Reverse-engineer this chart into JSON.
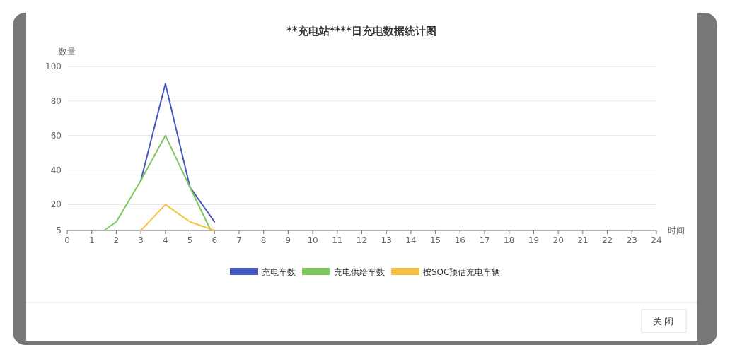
{
  "chart_data": {
    "type": "line",
    "title": "**充电站****日充电数据统计图",
    "ylabel": "数量",
    "xlabel": "时间",
    "xlim": [
      0,
      24
    ],
    "xticks": [
      0,
      1,
      2,
      3,
      4,
      5,
      6,
      7,
      8,
      9,
      10,
      11,
      12,
      13,
      14,
      15,
      16,
      17,
      18,
      19,
      20,
      21,
      22,
      23,
      24
    ],
    "ylim": [
      5,
      100
    ],
    "yticks": [
      5,
      20,
      40,
      60,
      80,
      100
    ],
    "grid": "y",
    "legend": "bottom",
    "marker": "none",
    "line_style": "solid",
    "series": [
      {
        "name": "充电车数",
        "color": "#4358c0",
        "x": [
          3,
          4,
          5,
          6
        ],
        "values": [
          34,
          90,
          30,
          10
        ]
      },
      {
        "name": "充电供给车数",
        "color": "#7dc65c",
        "x": [
          1.5,
          2,
          3,
          4,
          5,
          5.85
        ],
        "values": [
          5,
          10,
          34,
          60,
          30,
          5
        ]
      },
      {
        "name": "按SOC预估充电车辆",
        "color": "#f8c044",
        "x": [
          3,
          4,
          5,
          6
        ],
        "values": [
          5,
          20,
          10,
          5
        ]
      }
    ],
    "annotations": [
      "关闭"
    ]
  }
}
